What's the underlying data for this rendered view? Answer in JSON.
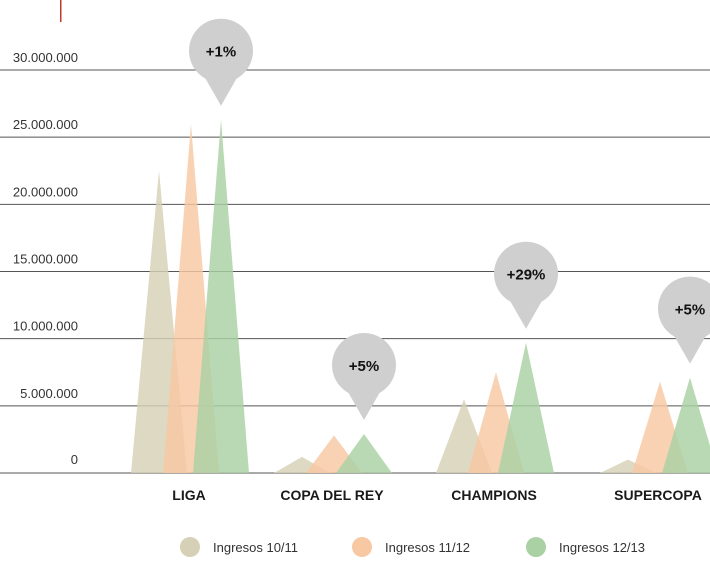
{
  "colors": {
    "accent_mark": "#c0392b",
    "grid": "#555555",
    "callout": "#cfcfcf"
  },
  "chart_data": {
    "type": "area",
    "categories": [
      "LIGA",
      "COPA DEL REY",
      "CHAMPIONS",
      "SUPERCOPA"
    ],
    "series": [
      {
        "name": "Ingresos 10/11",
        "color": "#d6d1b6",
        "values": [
          22500000,
          1200000,
          5500000,
          1000000
        ]
      },
      {
        "name": "Ingresos 11/12",
        "color": "#f8c8a3",
        "values": [
          26000000,
          2800000,
          7500000,
          6800000
        ]
      },
      {
        "name": "Ingresos 12/13",
        "color": "#a9d1a4",
        "values": [
          26300000,
          2900000,
          9700000,
          7100000
        ]
      }
    ],
    "yticks": [
      0,
      5000000,
      10000000,
      15000000,
      20000000,
      25000000,
      30000000
    ],
    "ytick_labels": [
      "0",
      "5.000.000",
      "10.000.000",
      "15.000.000",
      "20.000.000",
      "25.000.000",
      "30.000.000"
    ],
    "ylim": [
      0,
      30000000
    ],
    "grid": true,
    "legend_position": "bottom",
    "annotations": [
      "+1%",
      "+5%",
      "+29%",
      "+5%"
    ]
  }
}
